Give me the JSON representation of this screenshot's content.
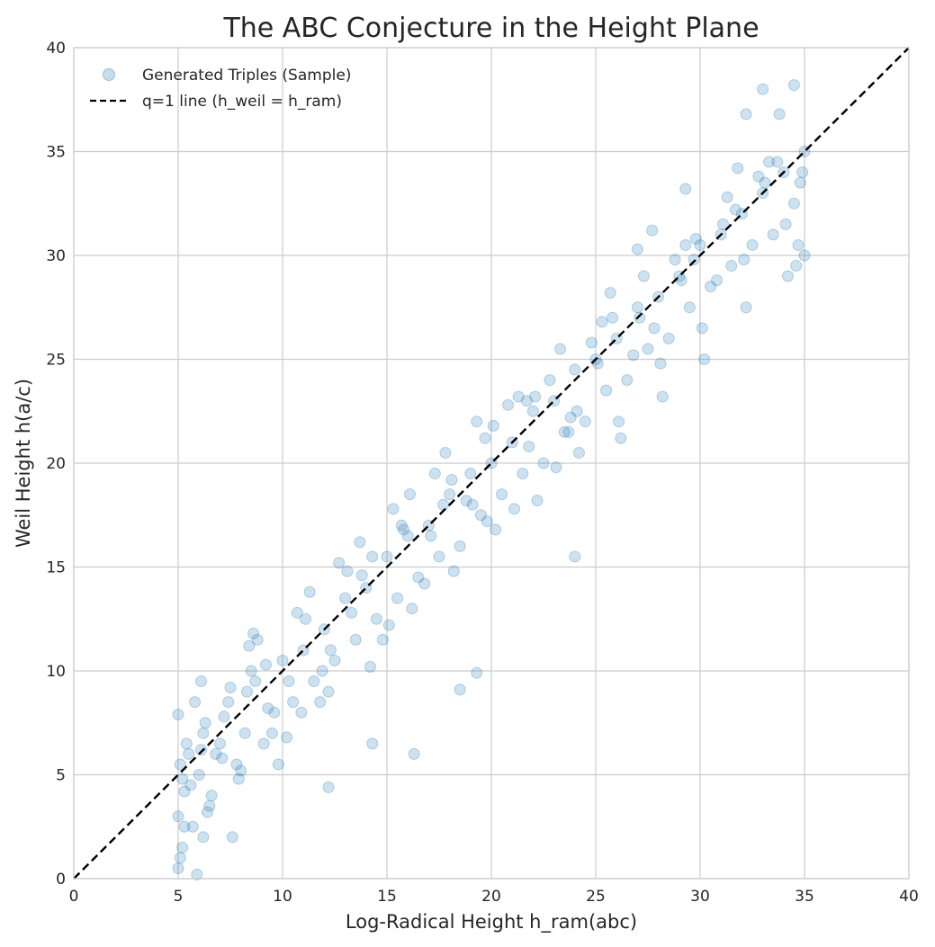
{
  "chart_data": {
    "type": "scatter",
    "title": "The ABC Conjecture in the Height Plane",
    "xlabel": "Log-Radical Height h_ram(abc)",
    "ylabel": "Weil Height h(a/c)",
    "xlim": [
      0,
      40
    ],
    "ylim": [
      0,
      40
    ],
    "xticks": [
      0,
      5,
      10,
      15,
      20,
      25,
      30,
      35,
      40
    ],
    "yticks": [
      0,
      5,
      10,
      15,
      20,
      25,
      30,
      35,
      40
    ],
    "grid": true,
    "legend_position": "top-left",
    "series": [
      {
        "name": "Generated Triples (Sample)",
        "kind": "scatter",
        "color": "#1f77b4",
        "x": [
          5.0,
          5.1,
          5.2,
          5.3,
          5.5,
          5.7,
          6.0,
          6.3,
          6.6,
          7.0,
          7.4,
          7.8,
          8.2,
          8.7,
          9.1,
          9.6,
          10.0,
          10.5,
          11.0,
          11.5,
          12.0,
          12.5,
          13.0,
          13.5,
          14.0,
          14.5,
          15.0,
          15.5,
          16.0,
          16.5,
          17.0,
          17.5,
          18.0,
          18.5,
          19.0,
          19.5,
          20.0,
          20.5,
          21.0,
          21.5,
          22.0,
          22.5,
          23.0,
          23.5,
          24.0,
          24.5,
          25.0,
          25.5,
          26.0,
          26.5,
          27.0,
          27.5,
          28.0,
          28.5,
          29.0,
          29.5,
          30.0,
          30.5,
          31.0,
          31.5,
          32.0,
          32.5,
          33.0,
          33.5,
          34.0,
          34.5,
          34.8,
          35.0,
          5.0,
          5.3,
          5.6,
          6.1,
          6.5,
          7.2,
          7.9,
          8.5,
          9.3,
          10.2,
          11.1,
          12.2,
          13.1,
          14.2,
          15.3,
          16.2,
          17.3,
          18.2,
          19.3,
          20.2,
          21.3,
          22.2,
          23.3,
          24.2,
          25.3,
          26.2,
          27.3,
          28.2,
          29.3,
          30.2,
          31.3,
          32.2,
          33.3,
          34.2,
          34.9,
          5.0,
          5.2,
          5.8,
          6.2,
          6.8,
          7.5,
          8.0,
          8.8,
          9.5,
          10.3,
          11.3,
          12.3,
          13.3,
          14.3,
          15.1,
          16.1,
          17.1,
          18.1,
          19.1,
          20.1,
          21.1,
          22.1,
          23.1,
          24.1,
          25.1,
          26.1,
          27.1,
          28.1,
          29.1,
          30.1,
          31.1,
          32.1,
          33.1,
          34.1,
          34.7,
          5.1,
          6.2,
          7.1,
          8.3,
          9.2,
          10.7,
          11.8,
          12.7,
          13.8,
          14.8,
          15.8,
          16.8,
          17.8,
          18.8,
          19.8,
          20.8,
          21.8,
          22.8,
          23.8,
          24.8,
          25.8,
          26.8,
          27.8,
          28.8,
          29.8,
          30.8,
          31.8,
          32.8,
          33.8,
          34.6,
          5.4,
          6.4,
          7.6,
          8.6,
          9.8,
          10.9,
          11.9,
          13.7,
          15.7,
          17.7,
          19.7,
          21.7,
          23.7,
          25.7,
          27.7,
          29.7,
          31.7,
          33.7,
          35.0,
          34.5,
          33.0,
          32.2,
          29.3,
          27.0,
          24.0,
          19.3,
          18.5,
          16.3,
          14.3,
          12.2,
          6.1,
          5.9,
          8.4
        ],
        "y": [
          3.0,
          5.5,
          1.5,
          4.2,
          6.0,
          2.5,
          5.0,
          7.5,
          4.0,
          6.5,
          8.5,
          5.5,
          7.0,
          9.5,
          6.5,
          8.0,
          10.5,
          8.5,
          11.0,
          9.5,
          12.0,
          10.5,
          13.5,
          11.5,
          14.0,
          12.5,
          15.5,
          13.5,
          16.5,
          14.5,
          17.0,
          15.5,
          18.5,
          16.0,
          19.5,
          17.5,
          20.0,
          18.5,
          21.0,
          19.5,
          22.5,
          20.0,
          23.0,
          21.5,
          24.5,
          22.0,
          25.0,
          23.5,
          26.0,
          24.0,
          27.5,
          25.5,
          28.0,
          26.0,
          29.0,
          27.5,
          30.5,
          28.5,
          31.0,
          29.5,
          32.0,
          30.5,
          33.0,
          31.0,
          34.0,
          32.5,
          33.5,
          35.0,
          7.9,
          2.5,
          4.5,
          6.2,
          3.5,
          7.8,
          4.8,
          10.0,
          8.2,
          6.8,
          12.5,
          9.0,
          14.8,
          10.2,
          17.8,
          13.0,
          19.5,
          14.8,
          22.0,
          16.8,
          23.2,
          18.2,
          25.5,
          20.5,
          26.8,
          21.2,
          29.0,
          23.2,
          30.5,
          25.0,
          32.8,
          27.5,
          34.5,
          29.0,
          34.0,
          0.5,
          4.8,
          8.5,
          2.0,
          6.0,
          9.2,
          5.2,
          11.5,
          7.0,
          9.5,
          13.8,
          11.0,
          12.8,
          15.5,
          12.2,
          18.5,
          16.5,
          19.2,
          18.0,
          21.8,
          17.8,
          23.2,
          19.8,
          22.5,
          24.8,
          22.0,
          27.0,
          24.8,
          28.8,
          26.5,
          31.5,
          29.8,
          33.5,
          31.5,
          30.5,
          1.0,
          7.0,
          5.8,
          9.0,
          10.3,
          12.8,
          8.5,
          15.2,
          14.6,
          11.5,
          16.8,
          14.2,
          20.5,
          18.2,
          17.2,
          22.8,
          20.8,
          24.0,
          22.2,
          25.8,
          27.0,
          25.2,
          26.5,
          29.8,
          30.8,
          28.8,
          34.2,
          33.8,
          36.8,
          29.5,
          6.5,
          3.2,
          2.0,
          11.8,
          5.5,
          8.0,
          10.0,
          16.2,
          17.0,
          18.0,
          21.2,
          23.0,
          21.5,
          28.2,
          31.2,
          29.8,
          32.2,
          34.5,
          30.0,
          38.2,
          38.0,
          36.8,
          33.2,
          30.3,
          15.5,
          9.9,
          9.1,
          6.0,
          6.5,
          4.4,
          9.5,
          0.2,
          11.2
        ]
      },
      {
        "name": "q=1 line (h_weil = h_ram)",
        "kind": "line",
        "color": "#000000",
        "style": "dashed",
        "x": [
          0,
          40
        ],
        "y": [
          0,
          40
        ]
      }
    ]
  }
}
